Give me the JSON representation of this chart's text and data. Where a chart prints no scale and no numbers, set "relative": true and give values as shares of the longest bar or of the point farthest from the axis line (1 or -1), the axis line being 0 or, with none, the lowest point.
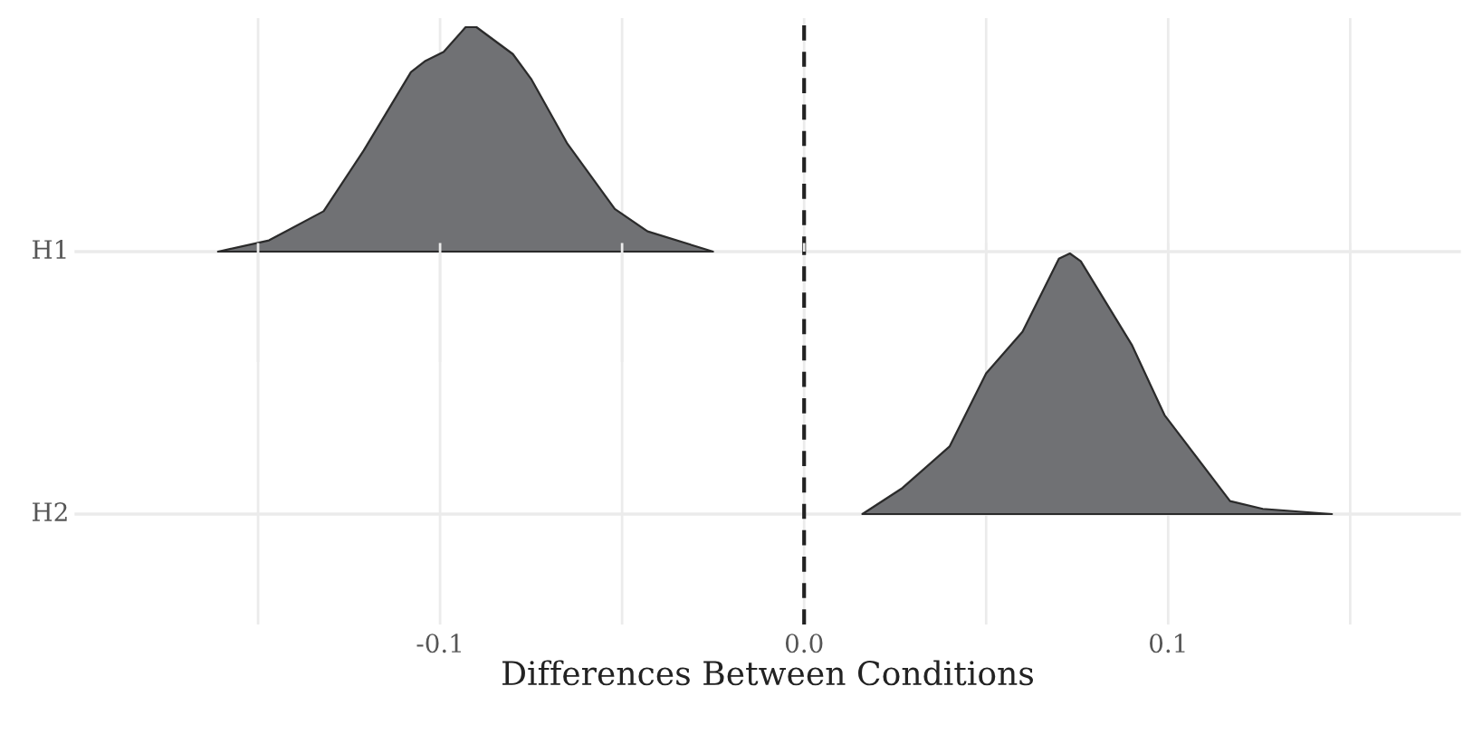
{
  "chart_data": [
    {
      "type": "area",
      "relative": true,
      "ylabel": "H1",
      "tick_labels": false,
      "xlim": [
        -0.2,
        0.18
      ],
      "xticks": [
        {
          "value": -0.15,
          "label": null
        },
        -0.1,
        {
          "value": -0.05,
          "label": null
        },
        0.0,
        {
          "value": 0.05,
          "label": null
        },
        0.1,
        {
          "value": 0.15,
          "label": null
        }
      ],
      "grid": "x",
      "ref_lines": [
        {
          "axis": "x",
          "value": 0.0,
          "color": "#222222",
          "line_style": "dashed"
        }
      ],
      "series": [
        {
          "color": "#6b6c6f",
          "x": [
            -0.161,
            -0.147,
            -0.132,
            -0.121,
            -0.108,
            -0.104,
            -0.099,
            -0.093,
            -0.09,
            -0.08,
            -0.075,
            -0.065,
            -0.052,
            -0.043,
            -0.025
          ],
          "values": [
            0.0,
            0.05,
            0.18,
            0.45,
            0.8,
            0.85,
            0.89,
            1.0,
            1.0,
            0.88,
            0.77,
            0.48,
            0.19,
            0.09,
            0.0
          ]
        }
      ]
    },
    {
      "type": "area",
      "relative": true,
      "ylabel": "H2",
      "xlabel": "Differences Between Conditions",
      "xlim": [
        -0.2,
        0.18
      ],
      "xticks": [
        {
          "value": -0.15,
          "label": null
        },
        {
          "value": -0.1,
          "label": "-0.1"
        },
        {
          "value": -0.05,
          "label": null
        },
        {
          "value": 0.0,
          "label": "0.0"
        },
        {
          "value": 0.05,
          "label": null
        },
        {
          "value": 0.1,
          "label": "0.1"
        },
        {
          "value": 0.15,
          "label": null
        }
      ],
      "grid": "x",
      "ref_lines": [
        {
          "axis": "x",
          "value": 0.0,
          "color": "#222222",
          "line_style": "dashed"
        }
      ],
      "series": [
        {
          "color": "#6b6c6f",
          "x": [
            0.016,
            0.027,
            0.04,
            0.05,
            0.06,
            0.07,
            0.073,
            0.076,
            0.09,
            0.099,
            0.117,
            0.126,
            0.145
          ],
          "values": [
            0.0,
            0.1,
            0.26,
            0.54,
            0.7,
            0.98,
            1.0,
            0.97,
            0.65,
            0.38,
            0.05,
            0.02,
            0.0
          ]
        }
      ]
    }
  ]
}
